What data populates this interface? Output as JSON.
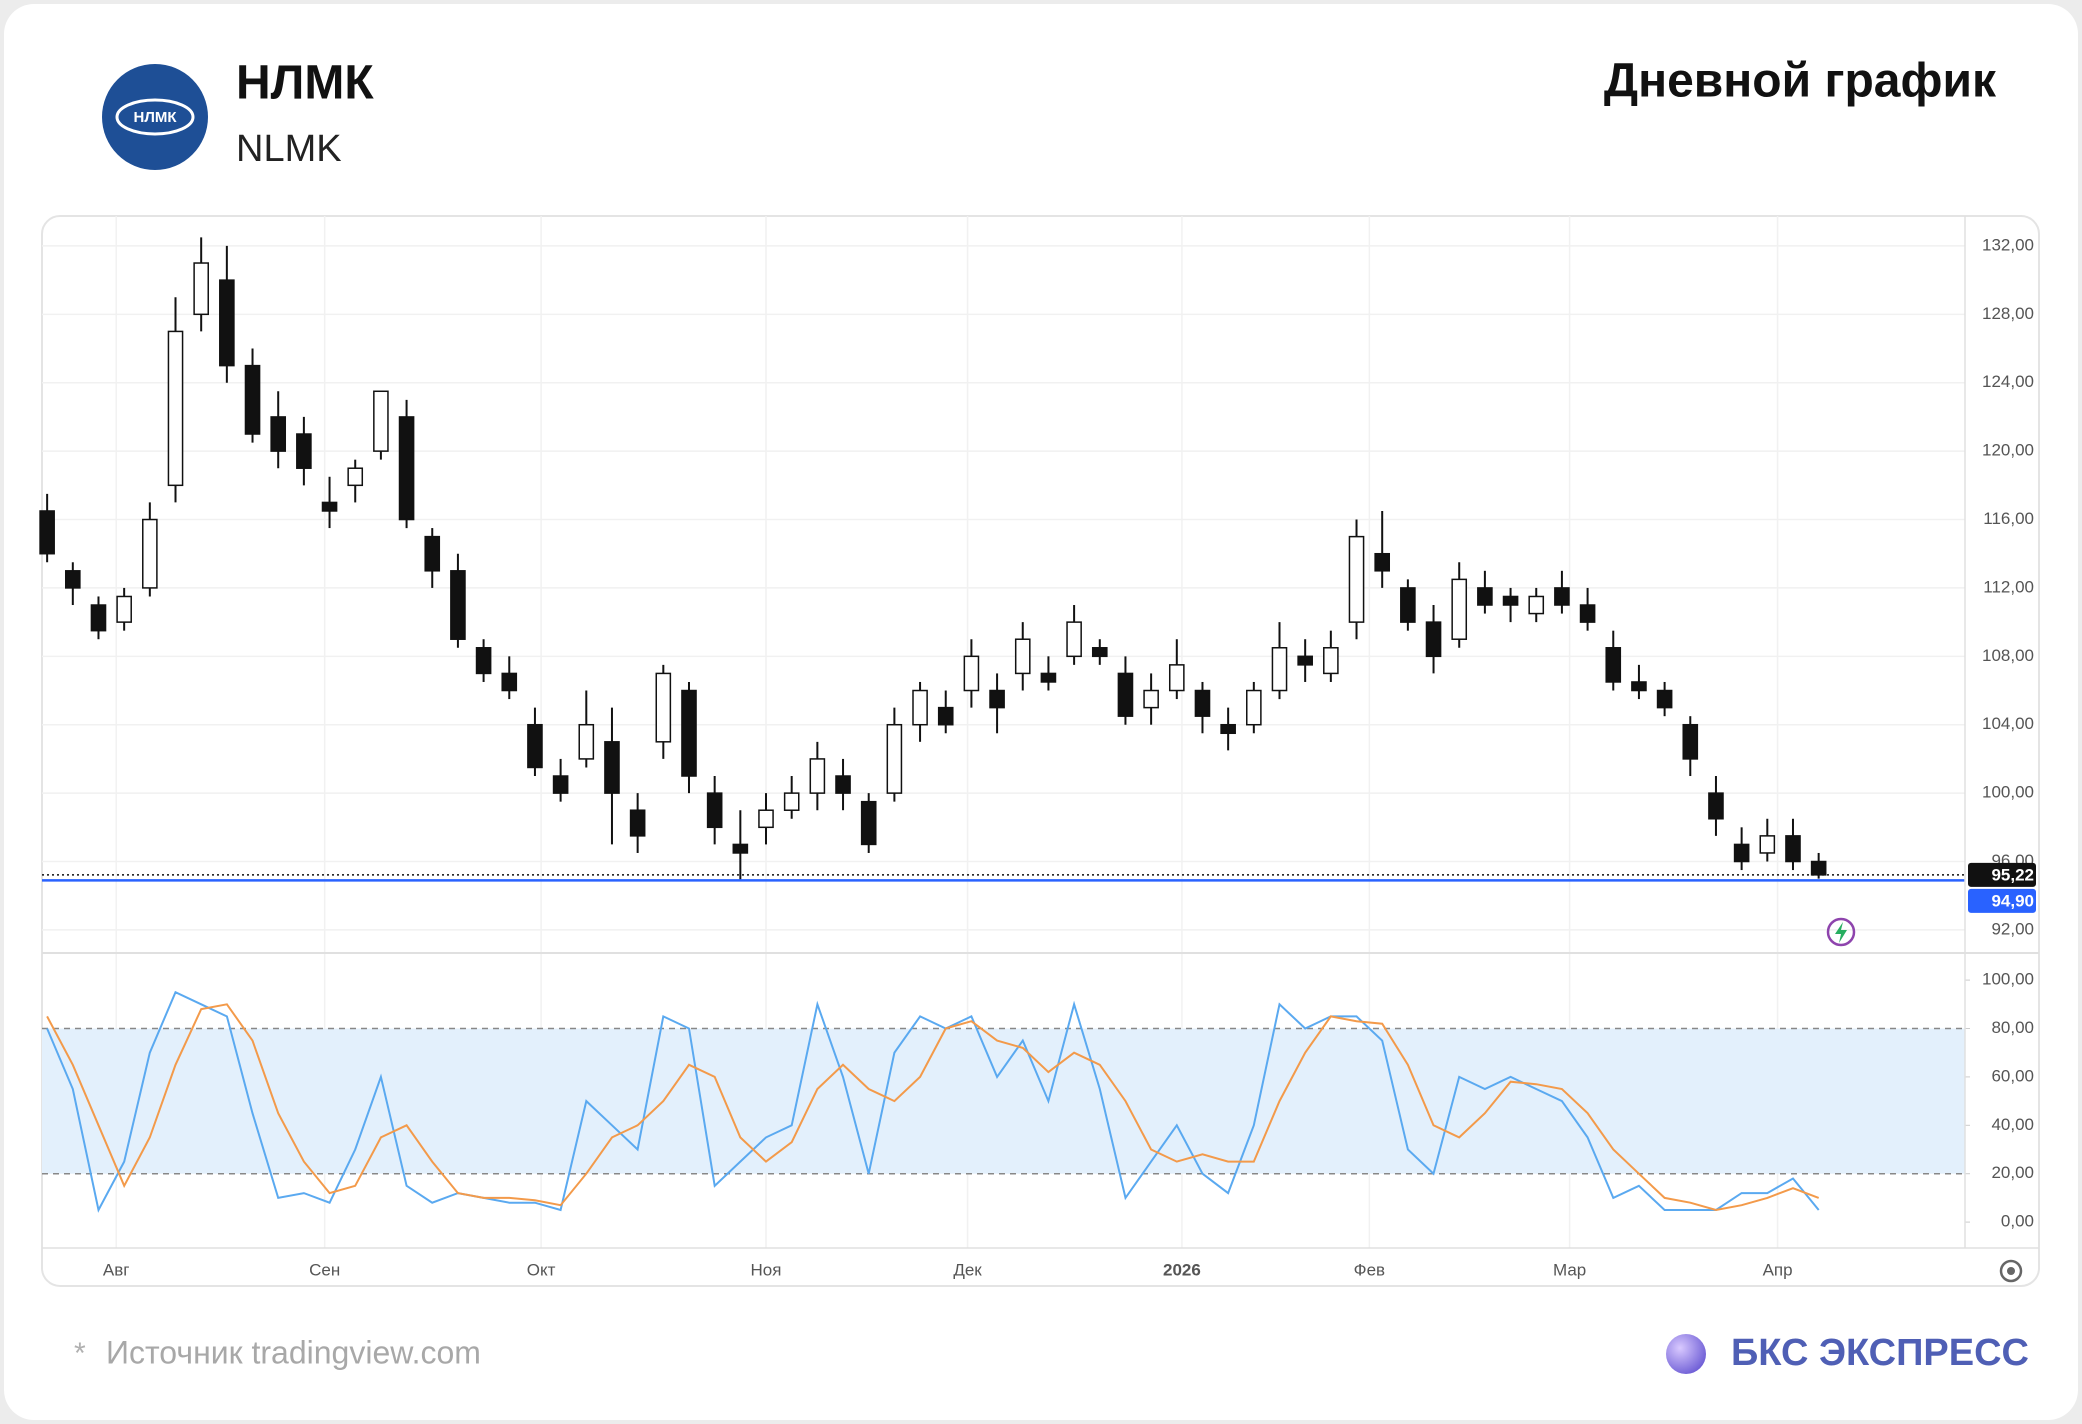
{
  "header": {
    "logo_text": "НЛМК",
    "ticker": "НЛМК",
    "ticker_latin": "NLMK",
    "title": "Дневной график"
  },
  "footer": {
    "note_mark": "*",
    "source": "Источник tradingview.com",
    "brand": "БКС ЭКСПРЕСС"
  },
  "chart_data": [
    {
      "type": "candlestick",
      "up_color": "#ffffff",
      "down_color": "#111111",
      "outline_color": "#111111",
      "open": [
        116.5,
        113,
        111,
        110,
        112,
        118,
        128,
        130,
        125,
        122,
        121,
        117,
        118,
        120,
        122,
        115,
        113,
        108.5,
        107,
        104,
        101,
        102,
        103,
        99,
        103,
        106,
        100,
        97,
        98,
        99,
        100,
        101,
        99.5,
        100,
        104,
        105,
        106,
        106,
        107,
        107,
        108,
        108.5,
        107,
        105,
        106,
        106,
        104,
        104,
        106,
        108,
        107,
        110,
        114,
        112,
        110,
        109,
        112,
        111.5,
        110.5,
        112,
        111,
        108.5,
        106.5,
        106,
        104,
        100,
        97,
        96.5,
        97.5,
        96
      ],
      "high": [
        117.5,
        113.5,
        111.5,
        112,
        117,
        129,
        132.5,
        132,
        126,
        123.5,
        122,
        118.5,
        119.5,
        123.5,
        123,
        115.5,
        114,
        109,
        108,
        105,
        102,
        106,
        105,
        100,
        107.5,
        106.5,
        101,
        99,
        100,
        101,
        103,
        102,
        100,
        105,
        106.5,
        106,
        109,
        107,
        110,
        108,
        111,
        109,
        108,
        107,
        109,
        106.5,
        105,
        106.5,
        110,
        109,
        109.5,
        116,
        116.5,
        112.5,
        111,
        113.5,
        113,
        112,
        112,
        113,
        112,
        109.5,
        107.5,
        106.5,
        104.5,
        101,
        98,
        98.5,
        98.5,
        96.5
      ],
      "low": [
        113.5,
        111,
        109,
        109.5,
        111.5,
        117,
        127,
        124,
        120.5,
        119,
        118,
        115.5,
        117,
        119.5,
        115.5,
        112,
        108.5,
        106.5,
        105.5,
        101,
        99.5,
        101.5,
        97,
        96.5,
        102,
        100,
        97,
        94.9,
        97,
        98.5,
        99,
        99,
        96.5,
        99.5,
        103,
        103.5,
        105,
        103.5,
        106,
        106,
        107.5,
        107.5,
        104,
        104,
        105.5,
        103.5,
        102.5,
        103.5,
        105.5,
        106.5,
        106.5,
        109,
        112,
        109.5,
        107,
        108.5,
        110.5,
        110,
        110,
        110.5,
        109.5,
        106,
        105.5,
        104.5,
        101,
        97.5,
        95.5,
        96,
        95.5,
        95
      ],
      "close": [
        114,
        112,
        109.5,
        111.5,
        116,
        127,
        131,
        125,
        121,
        120,
        119,
        116.5,
        119,
        123.5,
        116,
        113,
        109,
        107,
        106,
        101.5,
        100,
        104,
        100,
        97.5,
        107,
        101,
        98,
        96.5,
        99,
        100,
        102,
        100,
        97,
        104,
        106,
        104,
        108,
        105,
        109,
        106.5,
        110,
        108,
        104.5,
        106,
        107.5,
        104.5,
        103.5,
        106,
        108.5,
        107.5,
        108.5,
        115,
        113,
        110,
        108,
        112.5,
        111,
        111,
        111.5,
        111,
        110,
        106.5,
        106,
        105,
        102,
        98.5,
        96,
        97.5,
        96,
        95.22
      ],
      "xlim": [
        -0.2,
        74.7
      ],
      "xticks": [
        {
          "value": 2.69,
          "label": "Авг"
        },
        {
          "value": 10.81,
          "label": "Сен"
        },
        {
          "value": 19.24,
          "label": "Окт"
        },
        {
          "value": 28.0,
          "label": "Ноя"
        },
        {
          "value": 35.85,
          "label": "Дек"
        },
        {
          "value": 44.2,
          "label": "2026"
        },
        {
          "value": 51.5,
          "label": "Фев"
        },
        {
          "value": 59.3,
          "label": "Мар"
        },
        {
          "value": 67.4,
          "label": "Апр"
        }
      ],
      "ylim": [
        90.65,
        133.75
      ],
      "yticks": [
        {
          "value": 92,
          "label": "92,00"
        },
        {
          "value": 96,
          "label": "96,00"
        },
        {
          "value": 100,
          "label": "100,00"
        },
        {
          "value": 104,
          "label": "104,00"
        },
        {
          "value": 108,
          "label": "108,00"
        },
        {
          "value": 112,
          "label": "112,00"
        },
        {
          "value": 116,
          "label": "116,00"
        },
        {
          "value": 120,
          "label": "120,00"
        },
        {
          "value": 124,
          "label": "124,00"
        },
        {
          "value": 128,
          "label": "128,00"
        },
        {
          "value": 132,
          "label": "132,00"
        }
      ],
      "grid": true,
      "price_lines": [
        {
          "value": 95.22,
          "label": "95,22",
          "color": "#111111"
        },
        {
          "value": 94.9,
          "label": "94,90",
          "color": "#2962ff"
        }
      ]
    },
    {
      "type": "line",
      "series": [
        {
          "color": "#5aa9f0",
          "values": [
            80,
            55,
            5,
            25,
            70,
            95,
            90,
            85,
            45,
            10,
            12,
            8,
            30,
            60,
            15,
            8,
            12,
            10,
            8,
            8,
            5,
            50,
            40,
            30,
            85,
            80,
            15,
            25,
            35,
            40,
            90,
            60,
            20,
            70,
            85,
            80,
            85,
            60,
            75,
            50,
            90,
            55,
            10,
            25,
            40,
            20,
            12,
            40,
            90,
            80,
            85,
            85,
            75,
            30,
            20,
            60,
            55,
            60,
            55,
            50,
            35,
            10,
            15,
            5,
            5,
            5,
            12,
            12,
            18,
            5
          ]
        },
        {
          "color": "#f39a4a",
          "values": [
            85,
            65,
            40,
            15,
            35,
            65,
            88,
            90,
            75,
            45,
            25,
            12,
            15,
            35,
            40,
            25,
            12,
            10,
            10,
            9,
            7,
            20,
            35,
            40,
            50,
            65,
            60,
            35,
            25,
            33,
            55,
            65,
            55,
            50,
            60,
            80,
            83,
            75,
            72,
            62,
            70,
            65,
            50,
            30,
            25,
            28,
            25,
            25,
            50,
            70,
            85,
            83,
            82,
            65,
            40,
            35,
            45,
            58,
            57,
            55,
            45,
            30,
            20,
            10,
            8,
            5,
            7,
            10,
            14,
            10
          ]
        }
      ],
      "xlim": [
        -0.2,
        74.7
      ],
      "ylim": [
        -10.7,
        111.2
      ],
      "yticks": [
        {
          "value": 0,
          "label": "0,00"
        },
        {
          "value": 20,
          "label": "20,00"
        },
        {
          "value": 40,
          "label": "40,00"
        },
        {
          "value": 60,
          "label": "60,00"
        },
        {
          "value": 80,
          "label": "80,00"
        },
        {
          "value": 100,
          "label": "100,00"
        }
      ],
      "band": [
        20,
        80
      ],
      "band_color": "#e3f0fc"
    }
  ]
}
